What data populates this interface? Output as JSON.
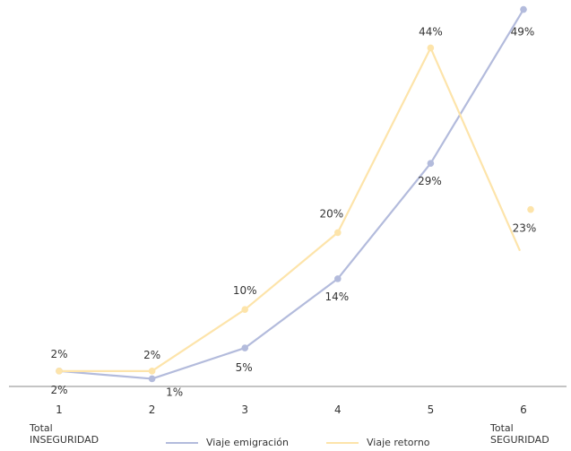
{
  "chart_data": {
    "type": "line",
    "title": "",
    "xlabel": "",
    "ylabel": "",
    "categories": [
      "1",
      "2",
      "3",
      "4",
      "5",
      "6"
    ],
    "ylim": [
      0,
      50
    ],
    "grid": false,
    "legend_position": "bottom",
    "series": [
      {
        "name": "Viaje emigración",
        "color": "#b3bbdc",
        "values": [
          2,
          1,
          5,
          14,
          29,
          49
        ],
        "labels": [
          "2%",
          "1%",
          "5%",
          "14%",
          "29%",
          "49%"
        ]
      },
      {
        "name": "Viaje retorno",
        "color": "#fde4aa",
        "values": [
          2,
          2,
          10,
          20,
          44,
          23
        ],
        "labels": [
          "2%",
          "2%",
          "10%",
          "20%",
          "44%",
          "23%"
        ]
      }
    ],
    "extremes": {
      "left": [
        "Total",
        "INSEGURIDAD"
      ],
      "right": [
        "Total",
        "SEGURIDAD"
      ]
    }
  }
}
